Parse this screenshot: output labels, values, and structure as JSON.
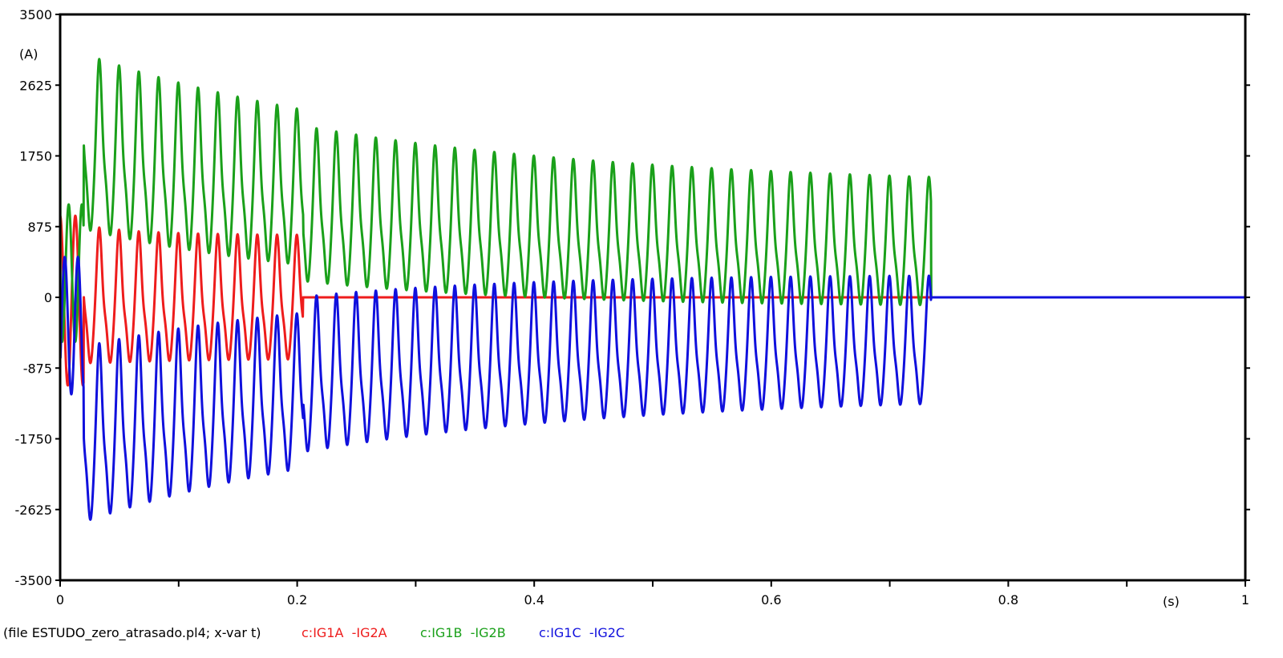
{
  "chart_data": {
    "type": "line",
    "y_unit": "(A)",
    "x_unit": "(s)",
    "xlim": [
      0,
      1
    ],
    "ylim": [
      -3500,
      3500
    ],
    "x_ticks": [
      0,
      0.1,
      0.2,
      0.3,
      0.4,
      0.5,
      0.6,
      0.7,
      0.8,
      0.9,
      1
    ],
    "x_tick_labels": [
      "0",
      "",
      "0.2",
      "",
      "0.4",
      "",
      "0.6",
      "",
      "0.8",
      "",
      "1"
    ],
    "y_ticks": [
      3500,
      2625,
      1750,
      875,
      0,
      -875,
      -1750,
      -2625,
      -3500
    ],
    "y_tick_labels": [
      "3500",
      "2625",
      "1750",
      "875",
      "0",
      "-875",
      "-1750",
      "-2625",
      "-3500"
    ],
    "grid": false,
    "legend": {
      "file_text": "(file ESTUDO_zero_atrasado.pl4; x-var t)",
      "placement": "bottom-left"
    },
    "series": [
      {
        "name": "c:IG1A  -IG2A",
        "color": "#ee1c1c",
        "model": {
          "f": 60,
          "base": -80,
          "amp0": 930,
          "amp1": 800,
          "tau": 0.06,
          "off0": 0,
          "tau_off": 0.04,
          "trip": 0.205
        }
      },
      {
        "name": "c:IG1B  -IG2B",
        "color": "#1aa01a",
        "model": {
          "f": 60,
          "base": 0,
          "amp0": 1150,
          "amp1": 750,
          "tau": 0.45,
          "off0": 1900,
          "off1": 750,
          "tau_off": 0.25,
          "step_t": 0.205,
          "step_off": -200,
          "trip": 0.735
        }
      },
      {
        "name": "c:IG1C  -IG2C",
        "color": "#1010dd",
        "model": {
          "f": 60,
          "base": 0,
          "amp0": 1150,
          "amp1": 750,
          "tau": 0.45,
          "off0": -1900,
          "off1": -750,
          "tau_off": 0.25,
          "step_t": 0.205,
          "step_off": 200,
          "trip": 0.735
        }
      }
    ]
  }
}
